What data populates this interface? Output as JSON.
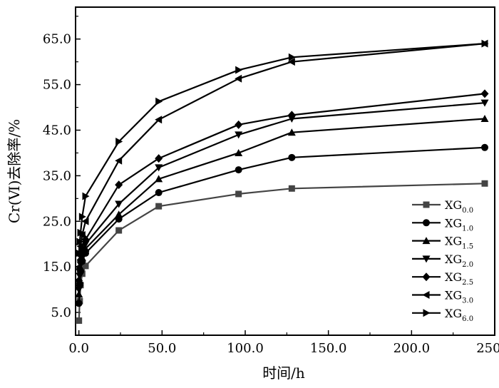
{
  "chart_data": {
    "type": "line",
    "xlabel": "时间/h",
    "ylabel": "Cr(Ⅵ)去除率/%",
    "xlim": [
      -2,
      250
    ],
    "ylim": [
      0,
      72
    ],
    "x_ticks": [
      0,
      50,
      100,
      150,
      200,
      250
    ],
    "x_tick_labels": [
      "0.0",
      "50.0",
      "100.0",
      "150.0",
      "200.0",
      "250.0"
    ],
    "y_ticks": [
      5,
      15,
      25,
      35,
      45,
      55,
      65
    ],
    "y_tick_labels": [
      "5.0",
      "15.0",
      "25.0",
      "35.0",
      "45.0",
      "55.0",
      "65.0"
    ],
    "grid": false,
    "legend_position": "bottom-right",
    "x": [
      0,
      0.5,
      1,
      2,
      4,
      24,
      48,
      96,
      128,
      244
    ],
    "series": [
      {
        "name": "XG",
        "subscript": "0.0",
        "marker": "square",
        "values": [
          3.2,
          7.5,
          11.0,
          13.5,
          15.2,
          23.0,
          28.3,
          31.0,
          32.2,
          33.3
        ]
      },
      {
        "name": "XG",
        "subscript": "1.0",
        "marker": "circle",
        "values": [
          7.0,
          11.0,
          14.0,
          16.2,
          18.0,
          25.5,
          31.3,
          36.3,
          39.0,
          41.2
        ]
      },
      {
        "name": "XG",
        "subscript": "1.5",
        "marker": "triangle-up",
        "values": [
          9.0,
          12.0,
          14.8,
          17.0,
          19.0,
          26.5,
          34.3,
          40.0,
          44.5,
          47.5
        ]
      },
      {
        "name": "XG",
        "subscript": "2.0",
        "marker": "triangle-down",
        "values": [
          10.0,
          13.0,
          15.5,
          18.0,
          20.0,
          28.8,
          36.8,
          44.0,
          47.5,
          51.0
        ]
      },
      {
        "name": "XG",
        "subscript": "2.5",
        "marker": "diamond",
        "values": [
          12.0,
          14.5,
          16.5,
          19.0,
          21.0,
          33.0,
          38.8,
          46.2,
          48.3,
          53.0
        ]
      },
      {
        "name": "XG",
        "subscript": "3.0",
        "marker": "triangle-left",
        "values": [
          15.0,
          17.5,
          19.5,
          22.0,
          25.0,
          38.3,
          47.3,
          56.3,
          60.0,
          64.0
        ]
      },
      {
        "name": "XG",
        "subscript": "6.0",
        "marker": "triangle-right",
        "values": [
          18.0,
          20.5,
          22.5,
          26.0,
          30.5,
          42.5,
          51.3,
          58.2,
          61.0,
          64.0
        ]
      }
    ],
    "colors": {
      "line": "#000000",
      "series_0": "#444444"
    }
  }
}
